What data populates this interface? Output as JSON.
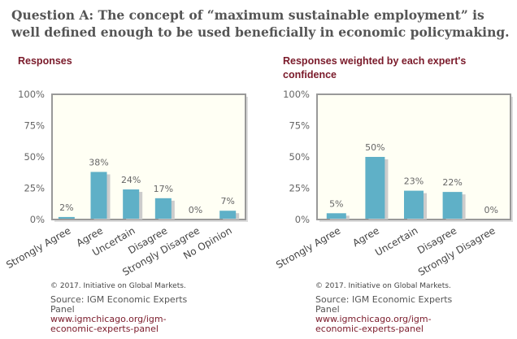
{
  "title": "Question A: The concept of “maximum sustainable employment” is well defined enough to be used beneficially in economic policymaking.",
  "colors": {
    "bar": "#5fb0c7",
    "plot_bg": "#fffff4",
    "frame": "#999999",
    "title": "#7a1a2a"
  },
  "chart_data": [
    {
      "type": "bar",
      "title": "Responses",
      "categories": [
        "Strongly Agree",
        "Agree",
        "Uncertain",
        "Disagree",
        "Strongly Disagree",
        "No Opinion"
      ],
      "values": [
        2,
        38,
        24,
        17,
        0,
        7
      ],
      "data_labels": [
        "2%",
        "38%",
        "24%",
        "17%",
        "0%",
        "7%"
      ],
      "ylim": [
        0,
        100
      ],
      "yticks": [
        "0%",
        "25%",
        "50%",
        "75%",
        "100%"
      ],
      "grid": false
    },
    {
      "type": "bar",
      "title": "Responses weighted by each expert's confidence",
      "categories": [
        "Strongly Agree",
        "Agree",
        "Uncertain",
        "Disagree",
        "Strongly Disagree"
      ],
      "values": [
        5,
        50,
        23,
        22,
        0
      ],
      "data_labels": [
        "5%",
        "50%",
        "23%",
        "22%",
        "0%"
      ],
      "ylim": [
        0,
        100
      ],
      "yticks": [
        "0%",
        "25%",
        "50%",
        "75%",
        "100%"
      ],
      "grid": false
    }
  ],
  "footer": {
    "copyright": "© 2017. Initiative on Global Markets.",
    "source": "Source: IGM Economic Experts Panel",
    "url": "www.igmchicago.org/igm-economic-experts-panel"
  }
}
